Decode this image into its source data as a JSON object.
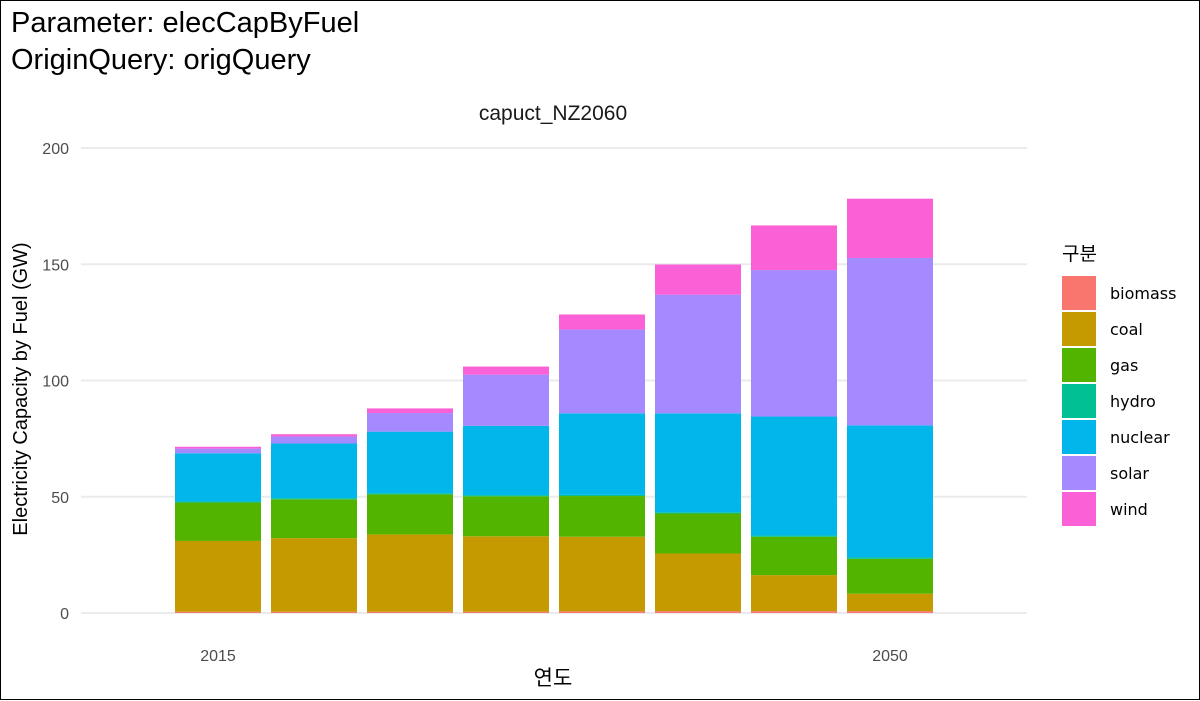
{
  "titles": {
    "line1": "Parameter: elecCapByFuel",
    "line2": "OriginQuery: origQuery"
  },
  "chart_data": {
    "type": "bar",
    "stacked": true,
    "facet_title": "capuct_NZ2060",
    "xlabel": "연도",
    "ylabel": "Electricity Capacity by Fuel (GW)",
    "x": [
      2015,
      2020,
      2025,
      2030,
      2035,
      2040,
      2045,
      2050
    ],
    "x_tick_labels": [
      {
        "value": 2015,
        "label": "2015"
      },
      {
        "value": 2050,
        "label": "2050"
      }
    ],
    "y_ticks": [
      0,
      50,
      100,
      150,
      200
    ],
    "ylim": [
      0,
      200
    ],
    "grid": true,
    "legend_title": "구분",
    "legend_position": "right",
    "series": [
      {
        "name": "biomass",
        "color": "#F8766D",
        "values": [
          0.5,
          0.5,
          0.5,
          0.5,
          0.7,
          0.8,
          0.8,
          0.8
        ]
      },
      {
        "name": "coal",
        "color": "#C49A00",
        "values": [
          30.5,
          31.7,
          33.3,
          32.5,
          32.1,
          24.8,
          15.5,
          7.5
        ]
      },
      {
        "name": "gas",
        "color": "#53B400",
        "values": [
          16.5,
          16.7,
          17.2,
          17.2,
          17.5,
          17.2,
          16.5,
          15.0
        ]
      },
      {
        "name": "hydro",
        "color": "#00C094",
        "values": [
          0.5,
          0.5,
          0.5,
          0.5,
          0.5,
          0.5,
          0.5,
          0.6
        ]
      },
      {
        "name": "nuclear",
        "color": "#00B6EB",
        "values": [
          20.7,
          23.5,
          26.5,
          29.8,
          35.1,
          42.6,
          51.2,
          56.8
        ]
      },
      {
        "name": "solar",
        "color": "#A58AFF",
        "values": [
          2.0,
          3.0,
          8.0,
          22.0,
          36.0,
          51.0,
          63.0,
          72.0
        ]
      },
      {
        "name": "wind",
        "color": "#FB61D7",
        "values": [
          0.8,
          1.0,
          2.0,
          3.5,
          6.5,
          13.0,
          19.2,
          25.5
        ]
      }
    ]
  }
}
